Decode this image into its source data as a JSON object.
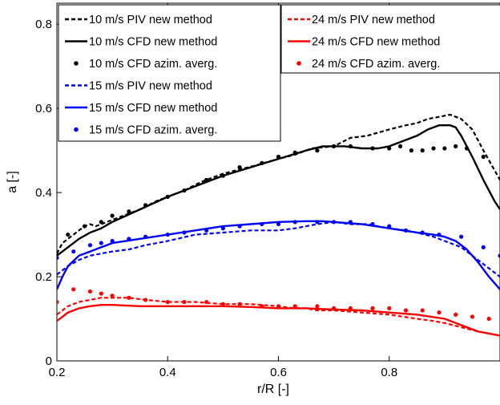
{
  "chart_data": {
    "type": "line",
    "xlabel": "r/R [-]",
    "ylabel": "a [-]",
    "xlim": [
      0.2,
      1.0
    ],
    "ylim": [
      0,
      0.85
    ],
    "xticks": [
      "0.2",
      "0.4",
      "0.6",
      "0.8"
    ],
    "yticks": [
      "0",
      "0.2",
      "0.4",
      "0.6",
      "0.8"
    ],
    "grid": false,
    "legends": [
      {
        "placement": "top-left",
        "entries": [
          "10 m/s PIV new method",
          "10 m/s CFD new method",
          "10 m/s CFD azim. averg.",
          "15 m/s PIV new method",
          "15 m/s CFD new method",
          "15 m/s CFD azim. averg."
        ]
      },
      {
        "placement": "top-center",
        "entries": [
          "24 m/s PIV new method",
          "24 m/s CFD new method",
          "24 m/s CFD azim. averg."
        ]
      }
    ],
    "series": [
      {
        "name": "10 m/s PIV new method",
        "color": "#000000",
        "style": "dashed",
        "x": [
          0.2,
          0.21,
          0.22,
          0.23,
          0.24,
          0.25,
          0.26,
          0.27,
          0.28,
          0.3,
          0.32,
          0.35,
          0.38,
          0.4,
          0.43,
          0.46,
          0.5,
          0.53,
          0.56,
          0.6,
          0.63,
          0.66,
          0.7,
          0.73,
          0.76,
          0.8,
          0.83,
          0.85,
          0.87,
          0.89,
          0.91,
          0.93,
          0.95,
          0.97,
          1.0
        ],
        "y": [
          0.255,
          0.28,
          0.29,
          0.3,
          0.31,
          0.32,
          0.325,
          0.32,
          0.325,
          0.335,
          0.345,
          0.36,
          0.38,
          0.39,
          0.405,
          0.425,
          0.445,
          0.455,
          0.465,
          0.48,
          0.49,
          0.505,
          0.51,
          0.53,
          0.535,
          0.55,
          0.56,
          0.565,
          0.575,
          0.58,
          0.585,
          0.575,
          0.55,
          0.5,
          0.43
        ]
      },
      {
        "name": "10 m/s CFD new method",
        "color": "#000000",
        "style": "solid",
        "x": [
          0.2,
          0.22,
          0.24,
          0.26,
          0.28,
          0.3,
          0.35,
          0.4,
          0.45,
          0.5,
          0.55,
          0.6,
          0.65,
          0.68,
          0.7,
          0.72,
          0.75,
          0.78,
          0.8,
          0.83,
          0.85,
          0.87,
          0.89,
          0.91,
          0.92,
          0.93,
          0.95,
          0.97,
          0.99,
          1.0
        ],
        "y": [
          0.25,
          0.27,
          0.29,
          0.305,
          0.315,
          0.33,
          0.36,
          0.39,
          0.415,
          0.44,
          0.46,
          0.48,
          0.5,
          0.51,
          0.51,
          0.51,
          0.505,
          0.505,
          0.51,
          0.525,
          0.535,
          0.55,
          0.56,
          0.56,
          0.555,
          0.535,
          0.485,
          0.43,
          0.38,
          0.36
        ]
      },
      {
        "name": "10 m/s CFD azim. averg.",
        "color": "#000000",
        "style": "dots",
        "x": [
          0.22,
          0.25,
          0.28,
          0.3,
          0.33,
          0.36,
          0.4,
          0.43,
          0.47,
          0.5,
          0.53,
          0.57,
          0.6,
          0.63,
          0.67,
          0.7,
          0.73,
          0.77,
          0.8,
          0.82,
          0.84,
          0.86,
          0.88,
          0.9,
          0.92,
          0.94,
          0.97
        ],
        "y": [
          0.3,
          0.32,
          0.33,
          0.345,
          0.355,
          0.37,
          0.39,
          0.405,
          0.43,
          0.44,
          0.46,
          0.47,
          0.485,
          0.495,
          0.5,
          0.51,
          0.51,
          0.505,
          0.505,
          0.51,
          0.5,
          0.5,
          0.505,
          0.505,
          0.51,
          0.505,
          0.485
        ]
      },
      {
        "name": "15 m/s PIV new method",
        "color": "#0000ff",
        "style": "dashed",
        "x": [
          0.2,
          0.22,
          0.24,
          0.26,
          0.28,
          0.3,
          0.33,
          0.36,
          0.4,
          0.45,
          0.5,
          0.55,
          0.6,
          0.63,
          0.65,
          0.67,
          0.7,
          0.73,
          0.76,
          0.8,
          0.83,
          0.85,
          0.88,
          0.9,
          0.93,
          0.96,
          1.0
        ],
        "y": [
          0.205,
          0.225,
          0.24,
          0.25,
          0.255,
          0.26,
          0.265,
          0.275,
          0.285,
          0.3,
          0.305,
          0.31,
          0.31,
          0.315,
          0.32,
          0.325,
          0.33,
          0.325,
          0.325,
          0.315,
          0.31,
          0.305,
          0.295,
          0.285,
          0.27,
          0.24,
          0.2
        ]
      },
      {
        "name": "15 m/s CFD new method",
        "color": "#0000ff",
        "style": "solid",
        "x": [
          0.2,
          0.21,
          0.22,
          0.24,
          0.26,
          0.28,
          0.3,
          0.35,
          0.4,
          0.45,
          0.5,
          0.55,
          0.6,
          0.65,
          0.68,
          0.7,
          0.75,
          0.8,
          0.85,
          0.88,
          0.9,
          0.92,
          0.94,
          0.96,
          0.98,
          1.0
        ],
        "y": [
          0.17,
          0.2,
          0.225,
          0.25,
          0.26,
          0.27,
          0.28,
          0.29,
          0.3,
          0.31,
          0.32,
          0.325,
          0.33,
          0.332,
          0.332,
          0.33,
          0.325,
          0.315,
          0.305,
          0.3,
          0.295,
          0.285,
          0.265,
          0.235,
          0.2,
          0.17
        ]
      },
      {
        "name": "15 m/s CFD azim. averg.",
        "color": "#0000ff",
        "style": "dots",
        "x": [
          0.2,
          0.23,
          0.26,
          0.28,
          0.3,
          0.33,
          0.36,
          0.4,
          0.43,
          0.47,
          0.5,
          0.53,
          0.57,
          0.6,
          0.63,
          0.67,
          0.7,
          0.73,
          0.77,
          0.8,
          0.83,
          0.86,
          0.89,
          0.93,
          0.97,
          1.0
        ],
        "y": [
          0.245,
          0.26,
          0.275,
          0.28,
          0.285,
          0.29,
          0.295,
          0.3,
          0.305,
          0.31,
          0.315,
          0.32,
          0.325,
          0.325,
          0.33,
          0.33,
          0.33,
          0.33,
          0.325,
          0.32,
          0.31,
          0.305,
          0.3,
          0.295,
          0.27,
          0.25
        ]
      },
      {
        "name": "24 m/s PIV new method",
        "color": "#ff0000",
        "style": "dashed",
        "x": [
          0.2,
          0.22,
          0.24,
          0.26,
          0.28,
          0.3,
          0.33,
          0.36,
          0.4,
          0.45,
          0.5,
          0.55,
          0.6,
          0.63,
          0.65,
          0.67,
          0.7,
          0.75,
          0.8,
          0.85,
          0.88,
          0.9,
          0.93,
          0.96,
          1.0
        ],
        "y": [
          0.11,
          0.13,
          0.14,
          0.145,
          0.15,
          0.15,
          0.15,
          0.145,
          0.14,
          0.14,
          0.135,
          0.135,
          0.13,
          0.125,
          0.125,
          0.12,
          0.12,
          0.115,
          0.11,
          0.1,
          0.095,
          0.09,
          0.08,
          0.07,
          0.06
        ]
      },
      {
        "name": "24 m/s CFD new method",
        "color": "#ff0000",
        "style": "solid",
        "x": [
          0.2,
          0.22,
          0.24,
          0.26,
          0.28,
          0.3,
          0.35,
          0.4,
          0.45,
          0.5,
          0.55,
          0.6,
          0.65,
          0.7,
          0.75,
          0.8,
          0.85,
          0.9,
          0.93,
          0.96,
          1.0
        ],
        "y": [
          0.095,
          0.115,
          0.125,
          0.13,
          0.133,
          0.133,
          0.13,
          0.13,
          0.13,
          0.13,
          0.128,
          0.125,
          0.125,
          0.122,
          0.12,
          0.115,
          0.11,
          0.1,
          0.085,
          0.07,
          0.06
        ]
      },
      {
        "name": "24 m/s CFD azim. averg.",
        "color": "#ff0000",
        "style": "dots",
        "x": [
          0.2,
          0.23,
          0.26,
          0.28,
          0.3,
          0.33,
          0.36,
          0.4,
          0.43,
          0.47,
          0.5,
          0.53,
          0.57,
          0.6,
          0.63,
          0.67,
          0.7,
          0.73,
          0.77,
          0.8,
          0.83,
          0.86,
          0.89,
          0.92,
          0.95,
          0.98
        ],
        "y": [
          0.14,
          0.17,
          0.165,
          0.16,
          0.155,
          0.15,
          0.145,
          0.14,
          0.14,
          0.14,
          0.135,
          0.135,
          0.13,
          0.13,
          0.13,
          0.13,
          0.125,
          0.125,
          0.125,
          0.125,
          0.12,
          0.12,
          0.115,
          0.11,
          0.105,
          0.1
        ]
      }
    ]
  }
}
